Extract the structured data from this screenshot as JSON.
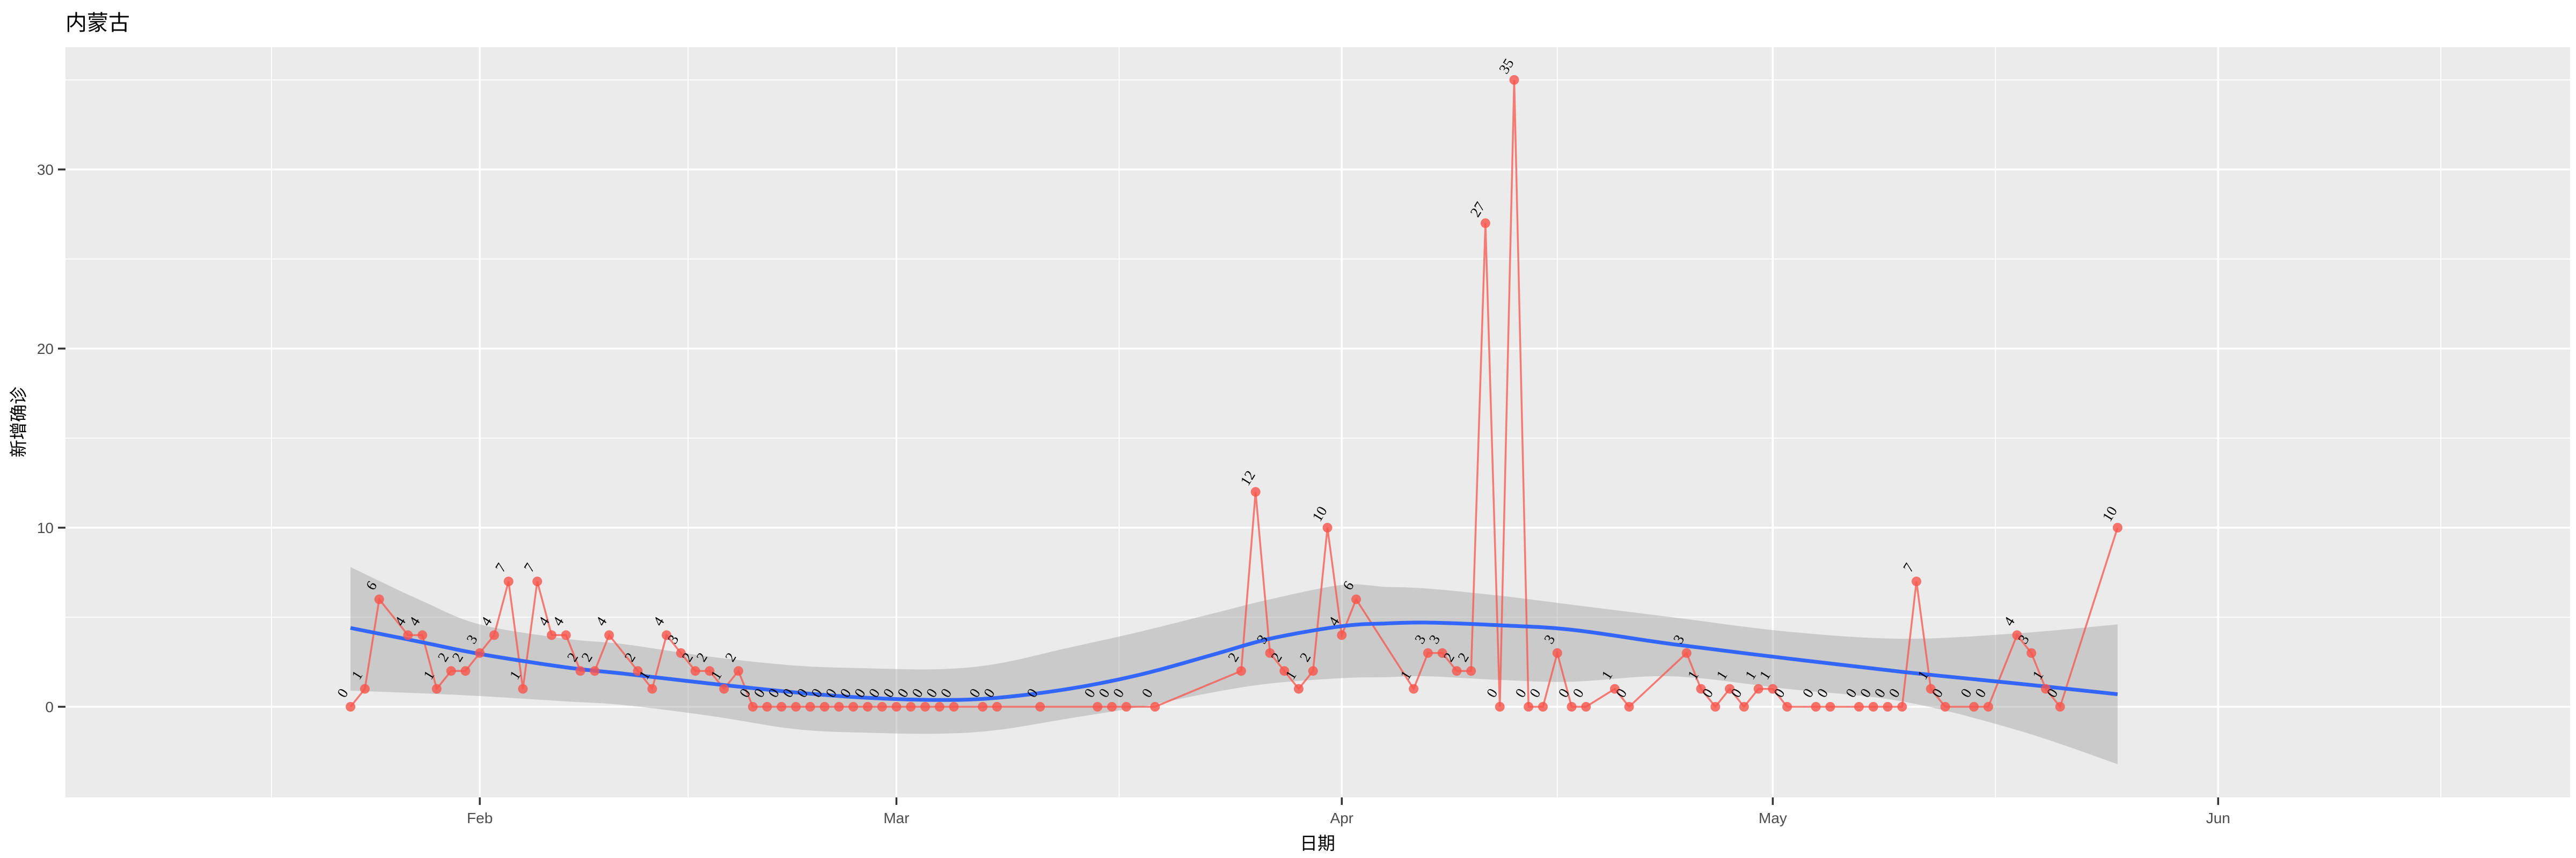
{
  "page": {
    "background": "#FFFFFF"
  },
  "chart_data": {
    "type": "line",
    "title": "内蒙古",
    "xlabel": "日期",
    "ylabel": "新增确诊",
    "legend": "none",
    "grid": "on",
    "year": 2020,
    "x_tick_labels": [
      "Feb",
      "Mar",
      "Apr",
      "May",
      "Jun"
    ],
    "x_tick_dates": [
      "02-01",
      "03-01",
      "04-01",
      "05-01",
      "06-01"
    ],
    "y_ticks": [
      0,
      10,
      20,
      30
    ],
    "y_minor_ticks": [
      5,
      15,
      25,
      35
    ],
    "ylim": [
      -5.0,
      36.8
    ],
    "x_start_date": "01-23",
    "x_end_date": "05-25",
    "points": {
      "dates": [
        "01-23",
        "01-24",
        "01-25",
        "01-27",
        "01-28",
        "01-29",
        "01-30",
        "01-31",
        "02-01",
        "02-02",
        "02-03",
        "02-04",
        "02-05",
        "02-06",
        "02-07",
        "02-08",
        "02-09",
        "02-10",
        "02-12",
        "02-13",
        "02-14",
        "02-15",
        "02-16",
        "02-17",
        "02-18",
        "02-19",
        "02-20",
        "02-21",
        "02-22",
        "02-23",
        "02-24",
        "02-25",
        "02-26",
        "02-27",
        "02-28",
        "02-29",
        "03-01",
        "03-02",
        "03-03",
        "03-04",
        "03-05",
        "03-07",
        "03-08",
        "03-11",
        "03-15",
        "03-16",
        "03-17",
        "03-19",
        "03-25",
        "03-26",
        "03-27",
        "03-28",
        "03-29",
        "03-30",
        "03-31",
        "04-01",
        "04-02",
        "04-06",
        "04-07",
        "04-08",
        "04-09",
        "04-10",
        "04-11",
        "04-12",
        "04-13",
        "04-14",
        "04-15",
        "04-16",
        "04-17",
        "04-18",
        "04-20",
        "04-21",
        "04-25",
        "04-26",
        "04-27",
        "04-28",
        "04-29",
        "04-30",
        "05-01",
        "05-02",
        "05-04",
        "05-05",
        "05-07",
        "05-08",
        "05-09",
        "05-10",
        "05-11",
        "05-12",
        "05-13",
        "05-15",
        "05-16",
        "05-18",
        "05-19",
        "05-20",
        "05-21",
        "05-25"
      ],
      "values": [
        0,
        1,
        6,
        4,
        4,
        1,
        2,
        2,
        3,
        4,
        7,
        1,
        7,
        4,
        4,
        2,
        2,
        4,
        2,
        1,
        4,
        3,
        2,
        2,
        1,
        2,
        0,
        0,
        0,
        0,
        0,
        0,
        0,
        0,
        0,
        0,
        0,
        0,
        0,
        0,
        0,
        0,
        0,
        0,
        0,
        0,
        0,
        0,
        2,
        12,
        3,
        2,
        1,
        2,
        10,
        4,
        6,
        1,
        3,
        3,
        2,
        2,
        27,
        0,
        35,
        0,
        0,
        3,
        0,
        0,
        1,
        0,
        3,
        1,
        0,
        1,
        0,
        1,
        1,
        0,
        0,
        0,
        0,
        0,
        0,
        0,
        7,
        1,
        0,
        0,
        0,
        4,
        3,
        1,
        0,
        10
      ]
    },
    "smooth": {
      "note": "loess trend with confidence ribbon; t = days since 01-23",
      "t": [
        0,
        5,
        9,
        15,
        19,
        25,
        31,
        36,
        41,
        45,
        50,
        55,
        60,
        64,
        69,
        72,
        75,
        80,
        85,
        92,
        100,
        108,
        116,
        123
      ],
      "fit": [
        4.4,
        3.6,
        2.95,
        2.2,
        1.85,
        1.3,
        0.8,
        0.5,
        0.38,
        0.5,
        1.0,
        1.8,
        2.9,
        3.8,
        4.5,
        4.65,
        4.7,
        4.55,
        4.3,
        3.5,
        2.7,
        1.95,
        1.3,
        0.7
      ],
      "upper": [
        7.8,
        5.9,
        4.6,
        3.8,
        3.5,
        2.8,
        2.3,
        2.15,
        2.1,
        2.4,
        3.3,
        4.2,
        5.2,
        6.0,
        6.8,
        6.7,
        6.6,
        6.2,
        5.7,
        5.0,
        4.2,
        3.8,
        4.1,
        4.6
      ],
      "lower": [
        0.9,
        0.75,
        0.6,
        0.3,
        0.1,
        -0.5,
        -1.25,
        -1.45,
        -1.5,
        -1.3,
        -0.65,
        0.0,
        0.8,
        1.3,
        1.6,
        1.65,
        1.7,
        1.5,
        1.4,
        1.7,
        1.0,
        0.3,
        -1.3,
        -3.2
      ]
    },
    "colors": {
      "panel_background": "#EBEBEB",
      "grid": "#FFFFFF",
      "ribbon": "#9E9E9E",
      "trend_line": "#3366FF",
      "series_line": "#F8544B",
      "point": "#F8544B",
      "label_text": "#000000",
      "axis_text": "#4D4D4D",
      "tick_mark": "#333333",
      "title_text": "#000000"
    }
  }
}
